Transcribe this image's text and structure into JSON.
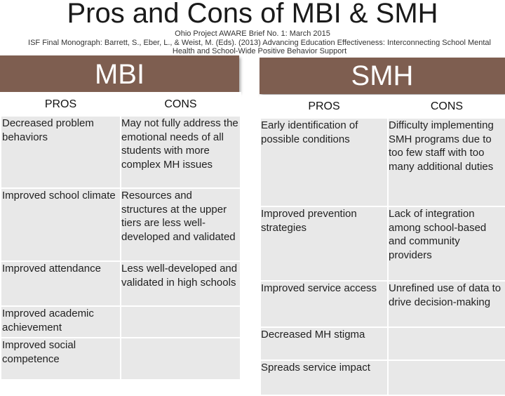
{
  "header": {
    "title": "Pros and Cons of MBI & SMH",
    "brief": "Ohio Project AWARE Brief No. 1: March 2015",
    "citation": "ISF Final Monograph: Barrett, S., Eber, L., & Weist, M. (Eds). (2013) Advancing Education Effectiveness: Interconnecting School Mental Health and School-Wide Positive Behavior Support"
  },
  "mbi": {
    "heading": "MBI",
    "pros_header": "PROS",
    "cons_header": "CONS",
    "rows": [
      {
        "pro": "Decreased problem behaviors",
        "con": "May not fully address the emotional needs of all students with more complex MH issues"
      },
      {
        "pro": "Improved school climate",
        "con": "Resources and structures at the upper tiers are less well-developed and validated"
      },
      {
        "pro": "Improved attendance",
        "con": "Less well-developed and validated in high schools"
      },
      {
        "pro": "Improved academic achievement",
        "con": ""
      },
      {
        "pro": "Improved social competence",
        "con": ""
      }
    ]
  },
  "smh": {
    "heading": "SMH",
    "pros_header": "PROS",
    "cons_header": "CONS",
    "rows": [
      {
        "pro": "Early identification of possible conditions",
        "con": "Difficulty implementing SMH programs due to too few staff with too many additional duties"
      },
      {
        "pro": "Improved prevention strategies",
        "con": "Lack of integration among school-based and community providers"
      },
      {
        "pro": "Improved service access",
        "con": "Unrefined use of data to drive decision-making"
      },
      {
        "pro": "Decreased MH stigma",
        "con": ""
      },
      {
        "pro": "Spreads service impact",
        "con": ""
      }
    ]
  }
}
